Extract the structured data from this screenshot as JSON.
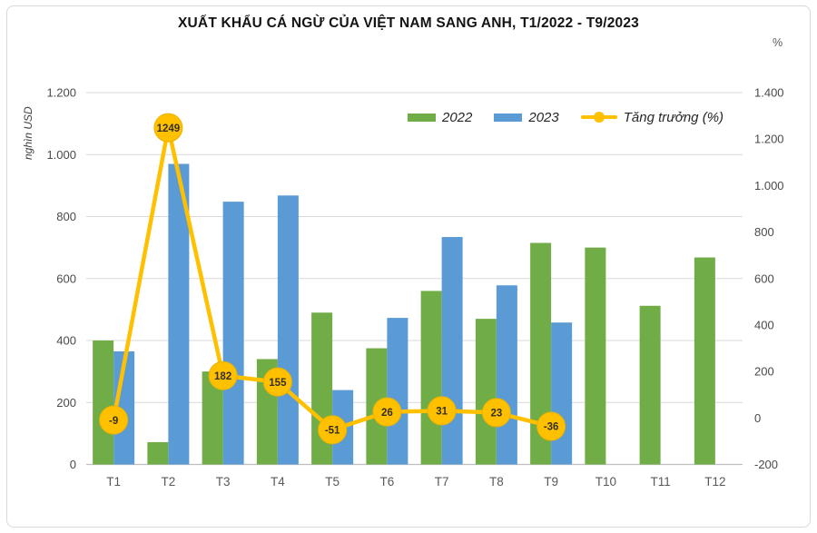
{
  "chart_data": {
    "type": "combo-bar-line",
    "title": "XUẤT KHẨU CÁ NGỪ CỦA VIỆT NAM SANG ANH, T1/2022 - T9/2023",
    "categories": [
      "T1",
      "T2",
      "T3",
      "T4",
      "T5",
      "T6",
      "T7",
      "T8",
      "T9",
      "T10",
      "T11",
      "T12"
    ],
    "series": [
      {
        "name": "2022",
        "type": "bar",
        "axis": "left",
        "color": "#70AD47",
        "values": [
          400,
          72,
          300,
          340,
          490,
          375,
          560,
          470,
          715,
          700,
          512,
          668
        ]
      },
      {
        "name": "2023",
        "type": "bar",
        "axis": "left",
        "color": "#5B9BD5",
        "values": [
          365,
          970,
          848,
          868,
          240,
          473,
          734,
          578,
          458,
          null,
          null,
          null
        ]
      },
      {
        "name": "Tăng trưởng (%)",
        "type": "line",
        "axis": "right",
        "color": "#FFC000",
        "values": [
          -9,
          1249,
          182,
          155,
          -51,
          26,
          31,
          23,
          -36,
          null,
          null,
          null
        ],
        "data_labels": [
          -9,
          1249,
          182,
          155,
          -51,
          26,
          31,
          23,
          -36,
          null,
          null,
          null
        ]
      }
    ],
    "left_axis": {
      "title": "nghìn USD",
      "min": 0,
      "max": 1200,
      "step": 200,
      "tick_labels": [
        "0",
        "200",
        "400",
        "600",
        "800",
        "1.000",
        "1.200"
      ]
    },
    "right_axis": {
      "title": "%",
      "min": -200,
      "max": 1400,
      "step": 200,
      "tick_labels": [
        "-200",
        "0",
        "200",
        "400",
        "600",
        "800",
        "1.000",
        "1.200",
        "1.400"
      ]
    },
    "grid": true,
    "legend_position": "top-inside-right",
    "colors": {
      "gridline": "#D9D9D9",
      "axis_line": "#BFBFBF",
      "tick_text": "#4a4a4a",
      "x_tick_text": "#595959",
      "marker_fill": "#FFC000",
      "marker_stroke": "#EDB100",
      "marker_text": "#33301f"
    }
  }
}
